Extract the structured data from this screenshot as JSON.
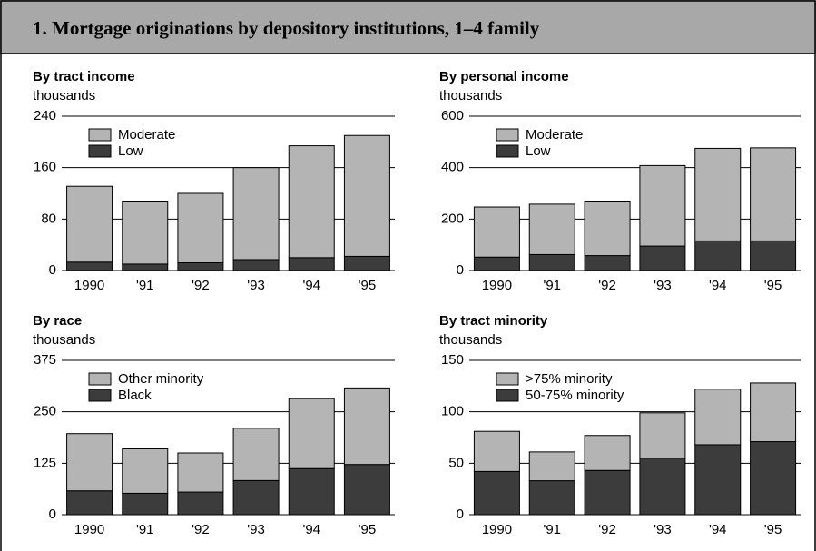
{
  "title": "1. Mortgage originations by depository institutions, 1–4 family",
  "chart_data": [
    {
      "type": "stacked-bar",
      "title": "By tract income",
      "y_label": "thousands",
      "categories": [
        "1990",
        "'91",
        "'92",
        "'93",
        "'94",
        "'95"
      ],
      "series": [
        {
          "name": "Low",
          "color": "#3c3c3c",
          "values": [
            13,
            10,
            12,
            17,
            20,
            22
          ]
        },
        {
          "name": "Moderate",
          "color": "#b4b4b4",
          "values": [
            118,
            98,
            108,
            143,
            174,
            188
          ]
        }
      ],
      "ylim": [
        0,
        240
      ],
      "yticks": [
        0,
        80,
        160,
        240
      ],
      "grid": true
    },
    {
      "type": "stacked-bar",
      "title": "By personal income",
      "y_label": "thousands",
      "categories": [
        "1990",
        "'91",
        "'92",
        "'93",
        "'94",
        "'95"
      ],
      "series": [
        {
          "name": "Low",
          "color": "#3c3c3c",
          "values": [
            52,
            62,
            58,
            95,
            115,
            115
          ]
        },
        {
          "name": "Moderate",
          "color": "#b4b4b4",
          "values": [
            195,
            196,
            212,
            313,
            360,
            362
          ]
        }
      ],
      "ylim": [
        0,
        600
      ],
      "yticks": [
        0,
        200,
        400,
        600
      ],
      "grid": true
    },
    {
      "type": "stacked-bar",
      "title": "By race",
      "y_label": "thousands",
      "categories": [
        "1990",
        "'91",
        "'92",
        "'93",
        "'94",
        "'95"
      ],
      "series": [
        {
          "name": "Black",
          "color": "#3c3c3c",
          "values": [
            58,
            52,
            55,
            83,
            112,
            122
          ]
        },
        {
          "name": "Other minority",
          "color": "#b4b4b4",
          "values": [
            139,
            108,
            95,
            127,
            170,
            186
          ]
        }
      ],
      "ylim": [
        0,
        375
      ],
      "yticks": [
        0,
        125,
        250,
        375
      ],
      "grid": true
    },
    {
      "type": "stacked-bar",
      "title": "By tract minority",
      "y_label": "thousands",
      "categories": [
        "1990",
        "'91",
        "'92",
        "'93",
        "'94",
        "'95"
      ],
      "series": [
        {
          "name": "50-75% minority",
          "color": "#3c3c3c",
          "values": [
            42,
            33,
            43,
            55,
            68,
            71
          ]
        },
        {
          "name": ">75% minority",
          "color": "#b4b4b4",
          "values": [
            39,
            28,
            34,
            44,
            54,
            57
          ]
        }
      ],
      "ylim": [
        0,
        150
      ],
      "yticks": [
        0,
        50,
        100,
        150
      ],
      "grid": true
    }
  ]
}
